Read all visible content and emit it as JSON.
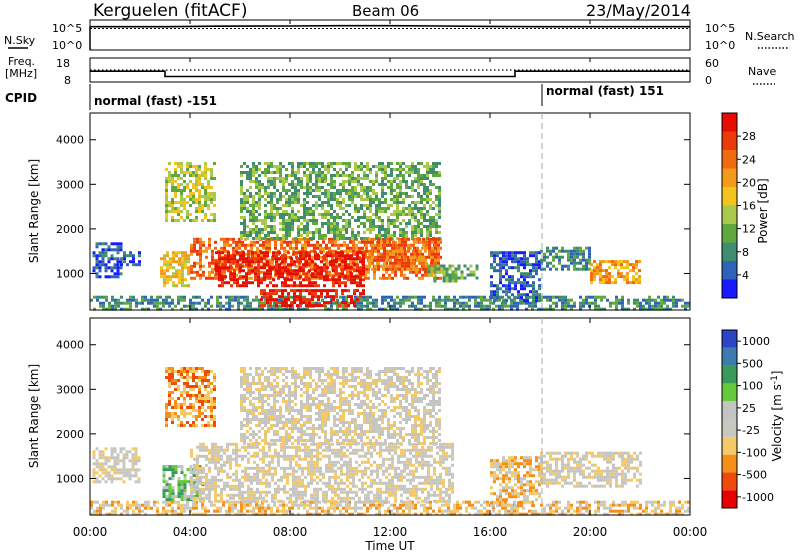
{
  "header": {
    "station": "Kerguelen (fitACF)",
    "beam": "Beam 06",
    "date": "23/May/2014"
  },
  "nsky_panel": {
    "left_label": "N.Sky",
    "right_label": "N.Search",
    "left_ticks": [
      "10^5",
      "10^0"
    ],
    "right_ticks": [
      "10^5",
      "10^0"
    ]
  },
  "freq_panel": {
    "left_label_1": "Freq.",
    "left_label_2": "[MHz]",
    "right_label": "Nave",
    "left_ticks": [
      "18",
      "8"
    ],
    "right_ticks": [
      "60",
      "0"
    ]
  },
  "cpid": {
    "label": "CPID",
    "modes": [
      {
        "text": "normal (fast) -151",
        "start_hour": 0
      },
      {
        "text": "normal (fast) 151",
        "start_hour": 18
      }
    ]
  },
  "x_axis": {
    "title": "Time UT",
    "ticks": [
      "00:00",
      "04:00",
      "08:00",
      "12:00",
      "16:00",
      "20:00",
      "00:00"
    ]
  },
  "colors": {
    "power_scale": [
      "#1a1aff",
      "#2e63b8",
      "#3f8c6f",
      "#5fa840",
      "#a9c94a",
      "#f2c41c",
      "#f39a1a",
      "#f26a0f",
      "#ec3a0a",
      "#e50e00"
    ],
    "velocity_scale": [
      "#e60000",
      "#ee4a08",
      "#f58f17",
      "#f4c968",
      "#c8c8c0",
      "#c4c4c4",
      "#66c83c",
      "#3a9a5a",
      "#3c7ab0",
      "#2a45c8"
    ]
  },
  "chart_data": [
    {
      "type": "line",
      "title": "N.Sky / N.Search",
      "x_range_hours": [
        0,
        24
      ],
      "series": [
        {
          "name": "N.Sky",
          "x": [
            0,
            3,
            5,
            8,
            10,
            12,
            14,
            16,
            18,
            24
          ],
          "values": [
            5,
            5,
            5.1,
            5.15,
            5.2,
            5.2,
            5.15,
            5.05,
            5,
            5
          ]
        },
        {
          "name": "N.Search",
          "x": [
            0,
            24
          ],
          "values": [
            4.6,
            4.6
          ]
        }
      ]
    },
    {
      "type": "line",
      "xlabel": "",
      "x_range_hours": [
        0,
        24
      ],
      "series": [
        {
          "name": "Freq.",
          "x": [
            0,
            3,
            3,
            17,
            17,
            24
          ],
          "values": [
            12.5,
            12.5,
            10.3,
            10.3,
            12.5,
            12.5
          ]
        },
        {
          "name": "Nave",
          "x": [
            0,
            24
          ],
          "values": [
            30,
            30
          ]
        }
      ]
    },
    {
      "type": "heatmap",
      "ylabel": "Slant Range [km]",
      "colorbar_label": "Power [dB]",
      "colorbar_ticks": [
        4,
        8,
        12,
        16,
        20,
        24,
        28
      ],
      "ylim": [
        180,
        4600
      ],
      "yticks": [
        1000,
        2000,
        3000,
        4000
      ],
      "x_range_hours": [
        0,
        24
      ],
      "regions": [
        {
          "t0": 0.0,
          "t1": 24.0,
          "r0": 200,
          "r1": 500,
          "level": 2
        },
        {
          "t0": 0.1,
          "t1": 1.2,
          "r0": 900,
          "r1": 1700,
          "level": 1
        },
        {
          "t0": 1.2,
          "t1": 2.0,
          "r0": 1200,
          "r1": 1500,
          "level": 1
        },
        {
          "t0": 2.8,
          "t1": 4.0,
          "r0": 700,
          "r1": 1500,
          "level": 5
        },
        {
          "t0": 3.0,
          "t1": 5.0,
          "r0": 2200,
          "r1": 3500,
          "level": 4
        },
        {
          "t0": 4.0,
          "t1": 14.0,
          "r0": 900,
          "r1": 1800,
          "level": 7
        },
        {
          "t0": 5.0,
          "t1": 11.0,
          "r0": 700,
          "r1": 1500,
          "level": 9
        },
        {
          "t0": 6.8,
          "t1": 11.0,
          "r0": 300,
          "r1": 650,
          "level": 9
        },
        {
          "t0": 6.0,
          "t1": 14.0,
          "r0": 1800,
          "r1": 3500,
          "level": 3
        },
        {
          "t0": 11.0,
          "t1": 14.0,
          "r0": 1100,
          "r1": 1800,
          "level": 7
        },
        {
          "t0": 13.5,
          "t1": 15.5,
          "r0": 800,
          "r1": 1200,
          "level": 3
        },
        {
          "t0": 16.0,
          "t1": 18.0,
          "r0": 400,
          "r1": 1500,
          "level": 1
        },
        {
          "t0": 18.0,
          "t1": 20.0,
          "r0": 1100,
          "r1": 1600,
          "level": 2
        },
        {
          "t0": 20.0,
          "t1": 22.0,
          "r0": 800,
          "r1": 1300,
          "level": 6
        }
      ]
    },
    {
      "type": "heatmap",
      "ylabel": "Slant Range [km]",
      "colorbar_label": "Velocity [m s^-1]",
      "colorbar_ticks": [
        1000,
        500,
        100,
        25,
        -25,
        -100,
        -500,
        -1000
      ],
      "ylim": [
        180,
        4600
      ],
      "yticks": [
        1000,
        2000,
        3000,
        4000
      ],
      "x_range_hours": [
        0,
        24
      ],
      "xlabel": "Time UT",
      "regions": [
        {
          "t0": 0.0,
          "t1": 24.0,
          "r0": 200,
          "r1": 500,
          "level": 3
        },
        {
          "t0": 0.1,
          "t1": 2.0,
          "r0": 900,
          "r1": 1700,
          "level": 4
        },
        {
          "t0": 2.9,
          "t1": 4.5,
          "r0": 500,
          "r1": 1300,
          "level": 6
        },
        {
          "t0": 3.0,
          "t1": 5.0,
          "r0": 2200,
          "r1": 3500,
          "level": 2
        },
        {
          "t0": 4.0,
          "t1": 14.5,
          "r0": 500,
          "r1": 1800,
          "level": 4
        },
        {
          "t0": 6.0,
          "t1": 14.0,
          "r0": 1800,
          "r1": 3500,
          "level": 4
        },
        {
          "t0": 16.0,
          "t1": 18.0,
          "r0": 400,
          "r1": 1500,
          "level": 3
        },
        {
          "t0": 18.0,
          "t1": 22.0,
          "r0": 800,
          "r1": 1600,
          "level": 4
        }
      ]
    }
  ]
}
